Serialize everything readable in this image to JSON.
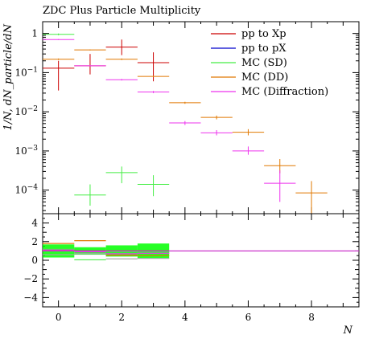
{
  "chart_data": [
    {
      "type": "histogram",
      "title": "ZDC Plus Particle Multiplicity",
      "xlabel": "N",
      "ylabel": "1/N, dN_particle/dN",
      "ylog": true,
      "ylim": [
        2.5e-05,
        2
      ],
      "xlim": [
        -0.5,
        9.5
      ],
      "x_ticks": [
        0,
        2,
        4,
        6,
        8
      ],
      "y_ticks": [
        {
          "value": 1,
          "label": "1"
        },
        {
          "value": 0.1,
          "label": "10^-1"
        },
        {
          "value": 0.01,
          "label": "10^-2"
        },
        {
          "value": 0.001,
          "label": "10^-3"
        },
        {
          "value": 0.0001,
          "label": "10^-4"
        }
      ],
      "legend_position": "top-right",
      "series": [
        {
          "name": "pp to Xp",
          "color": "#cc0000",
          "points": [
            {
              "x": 0,
              "y": 0.13,
              "lo": 0.035,
              "hi": 0.2
            },
            {
              "x": 1,
              "y": 0.15,
              "lo": 0.09,
              "hi": 0.3
            },
            {
              "x": 2,
              "y": 0.45,
              "lo": 0.28,
              "hi": 0.7
            },
            {
              "x": 3,
              "y": 0.18,
              "lo": 0.06,
              "hi": 0.33
            }
          ]
        },
        {
          "name": "pp to pX",
          "color": "#0000cc",
          "points": []
        },
        {
          "name": "MC (SD)",
          "color": "#44ee44",
          "points": [
            {
              "x": 0,
              "y": 0.95,
              "lo": 0.9,
              "hi": 1.0
            },
            {
              "x": 1,
              "y": 7.5e-05,
              "lo": 4e-05,
              "hi": 0.00014
            },
            {
              "x": 2,
              "y": 0.00028,
              "lo": 0.00015,
              "hi": 0.0004
            },
            {
              "x": 3,
              "y": 0.00014,
              "lo": 7e-05,
              "hi": 0.00024
            }
          ]
        },
        {
          "name": "MC (DD)",
          "color": "#e07800",
          "points": [
            {
              "x": 0,
              "y": 0.22,
              "lo": 0.21,
              "hi": 0.23
            },
            {
              "x": 1,
              "y": 0.38,
              "lo": 0.37,
              "hi": 0.39
            },
            {
              "x": 2,
              "y": 0.22,
              "lo": 0.21,
              "hi": 0.23
            },
            {
              "x": 3,
              "y": 0.08,
              "lo": 0.077,
              "hi": 0.083
            },
            {
              "x": 4,
              "y": 0.017,
              "lo": 0.016,
              "hi": 0.018
            },
            {
              "x": 5,
              "y": 0.0072,
              "lo": 0.0064,
              "hi": 0.008
            },
            {
              "x": 6,
              "y": 0.003,
              "lo": 0.0025,
              "hi": 0.0036
            },
            {
              "x": 7,
              "y": 0.00042,
              "lo": 0.00027,
              "hi": 0.00062
            },
            {
              "x": 8,
              "y": 8.5e-05,
              "lo": 2.5e-05,
              "hi": 0.00017
            }
          ]
        },
        {
          "name": "MC (Diffraction)",
          "color": "#ee33ee",
          "points": [
            {
              "x": 0,
              "y": 0.7,
              "lo": 0.68,
              "hi": 0.72
            },
            {
              "x": 1,
              "y": 0.15,
              "lo": 0.145,
              "hi": 0.155
            },
            {
              "x": 2,
              "y": 0.066,
              "lo": 0.063,
              "hi": 0.069
            },
            {
              "x": 3,
              "y": 0.032,
              "lo": 0.03,
              "hi": 0.034
            },
            {
              "x": 4,
              "y": 0.0052,
              "lo": 0.0046,
              "hi": 0.0058
            },
            {
              "x": 5,
              "y": 0.0029,
              "lo": 0.0025,
              "hi": 0.0034
            },
            {
              "x": 6,
              "y": 0.001,
              "lo": 0.0008,
              "hi": 0.0013
            },
            {
              "x": 7,
              "y": 0.00015,
              "lo": 5e-05,
              "hi": 0.00032
            }
          ]
        }
      ]
    },
    {
      "type": "ratio",
      "ylim": [
        -5,
        5
      ],
      "xlim": [
        -0.5,
        9.5
      ],
      "y_ticks": [
        {
          "value": 4,
          "label": "4"
        },
        {
          "value": 2,
          "label": "2"
        },
        {
          "value": 0,
          "label": "0"
        },
        {
          "value": -2,
          "label": "-2"
        },
        {
          "value": -4,
          "label": "-4"
        }
      ],
      "reference_line": {
        "value": 1,
        "color": "#cc33cc"
      },
      "band": {
        "color": "#00ff00",
        "bins": [
          {
            "x": 0,
            "lo": 0.3,
            "hi": 1.7
          },
          {
            "x": 1,
            "lo": 0.6,
            "hi": 1.4
          },
          {
            "x": 2,
            "lo": 0.4,
            "hi": 1.6
          },
          {
            "x": 3,
            "lo": 0.2,
            "hi": 1.8
          }
        ]
      },
      "series": [
        {
          "color": "#aaaaaa",
          "values": [
            {
              "x": 0,
              "y": 0.6
            },
            {
              "x": 1,
              "y": 0.7
            },
            {
              "x": 2,
              "y": 0.15
            },
            {
              "x": 3,
              "y": 0.2
            }
          ]
        },
        {
          "color": "#44ee44",
          "values": [
            {
              "x": 0,
              "y": 1.2
            },
            {
              "x": 1,
              "y": 0.05
            },
            {
              "x": 2,
              "y": 0.9
            },
            {
              "x": 3,
              "y": 0.85
            }
          ]
        },
        {
          "color": "#e07800",
          "values": [
            {
              "x": 0,
              "y": 1.8
            },
            {
              "x": 1,
              "y": 2.1
            },
            {
              "x": 2,
              "y": 0.55
            },
            {
              "x": 3,
              "y": 0.5
            }
          ]
        },
        {
          "color": "#ee33ee",
          "values": [
            {
              "x": 0,
              "y": 1.1
            },
            {
              "x": 1,
              "y": 0.9
            },
            {
              "x": 2,
              "y": 0.7
            },
            {
              "x": 3,
              "y": 0.75
            }
          ]
        },
        {
          "color": "#cc0000",
          "values": [
            {
              "x": 0,
              "y": 1.0
            },
            {
              "x": 1,
              "y": 1.0
            },
            {
              "x": 2,
              "y": 1.0
            },
            {
              "x": 3,
              "y": 1.0
            }
          ]
        }
      ]
    }
  ]
}
